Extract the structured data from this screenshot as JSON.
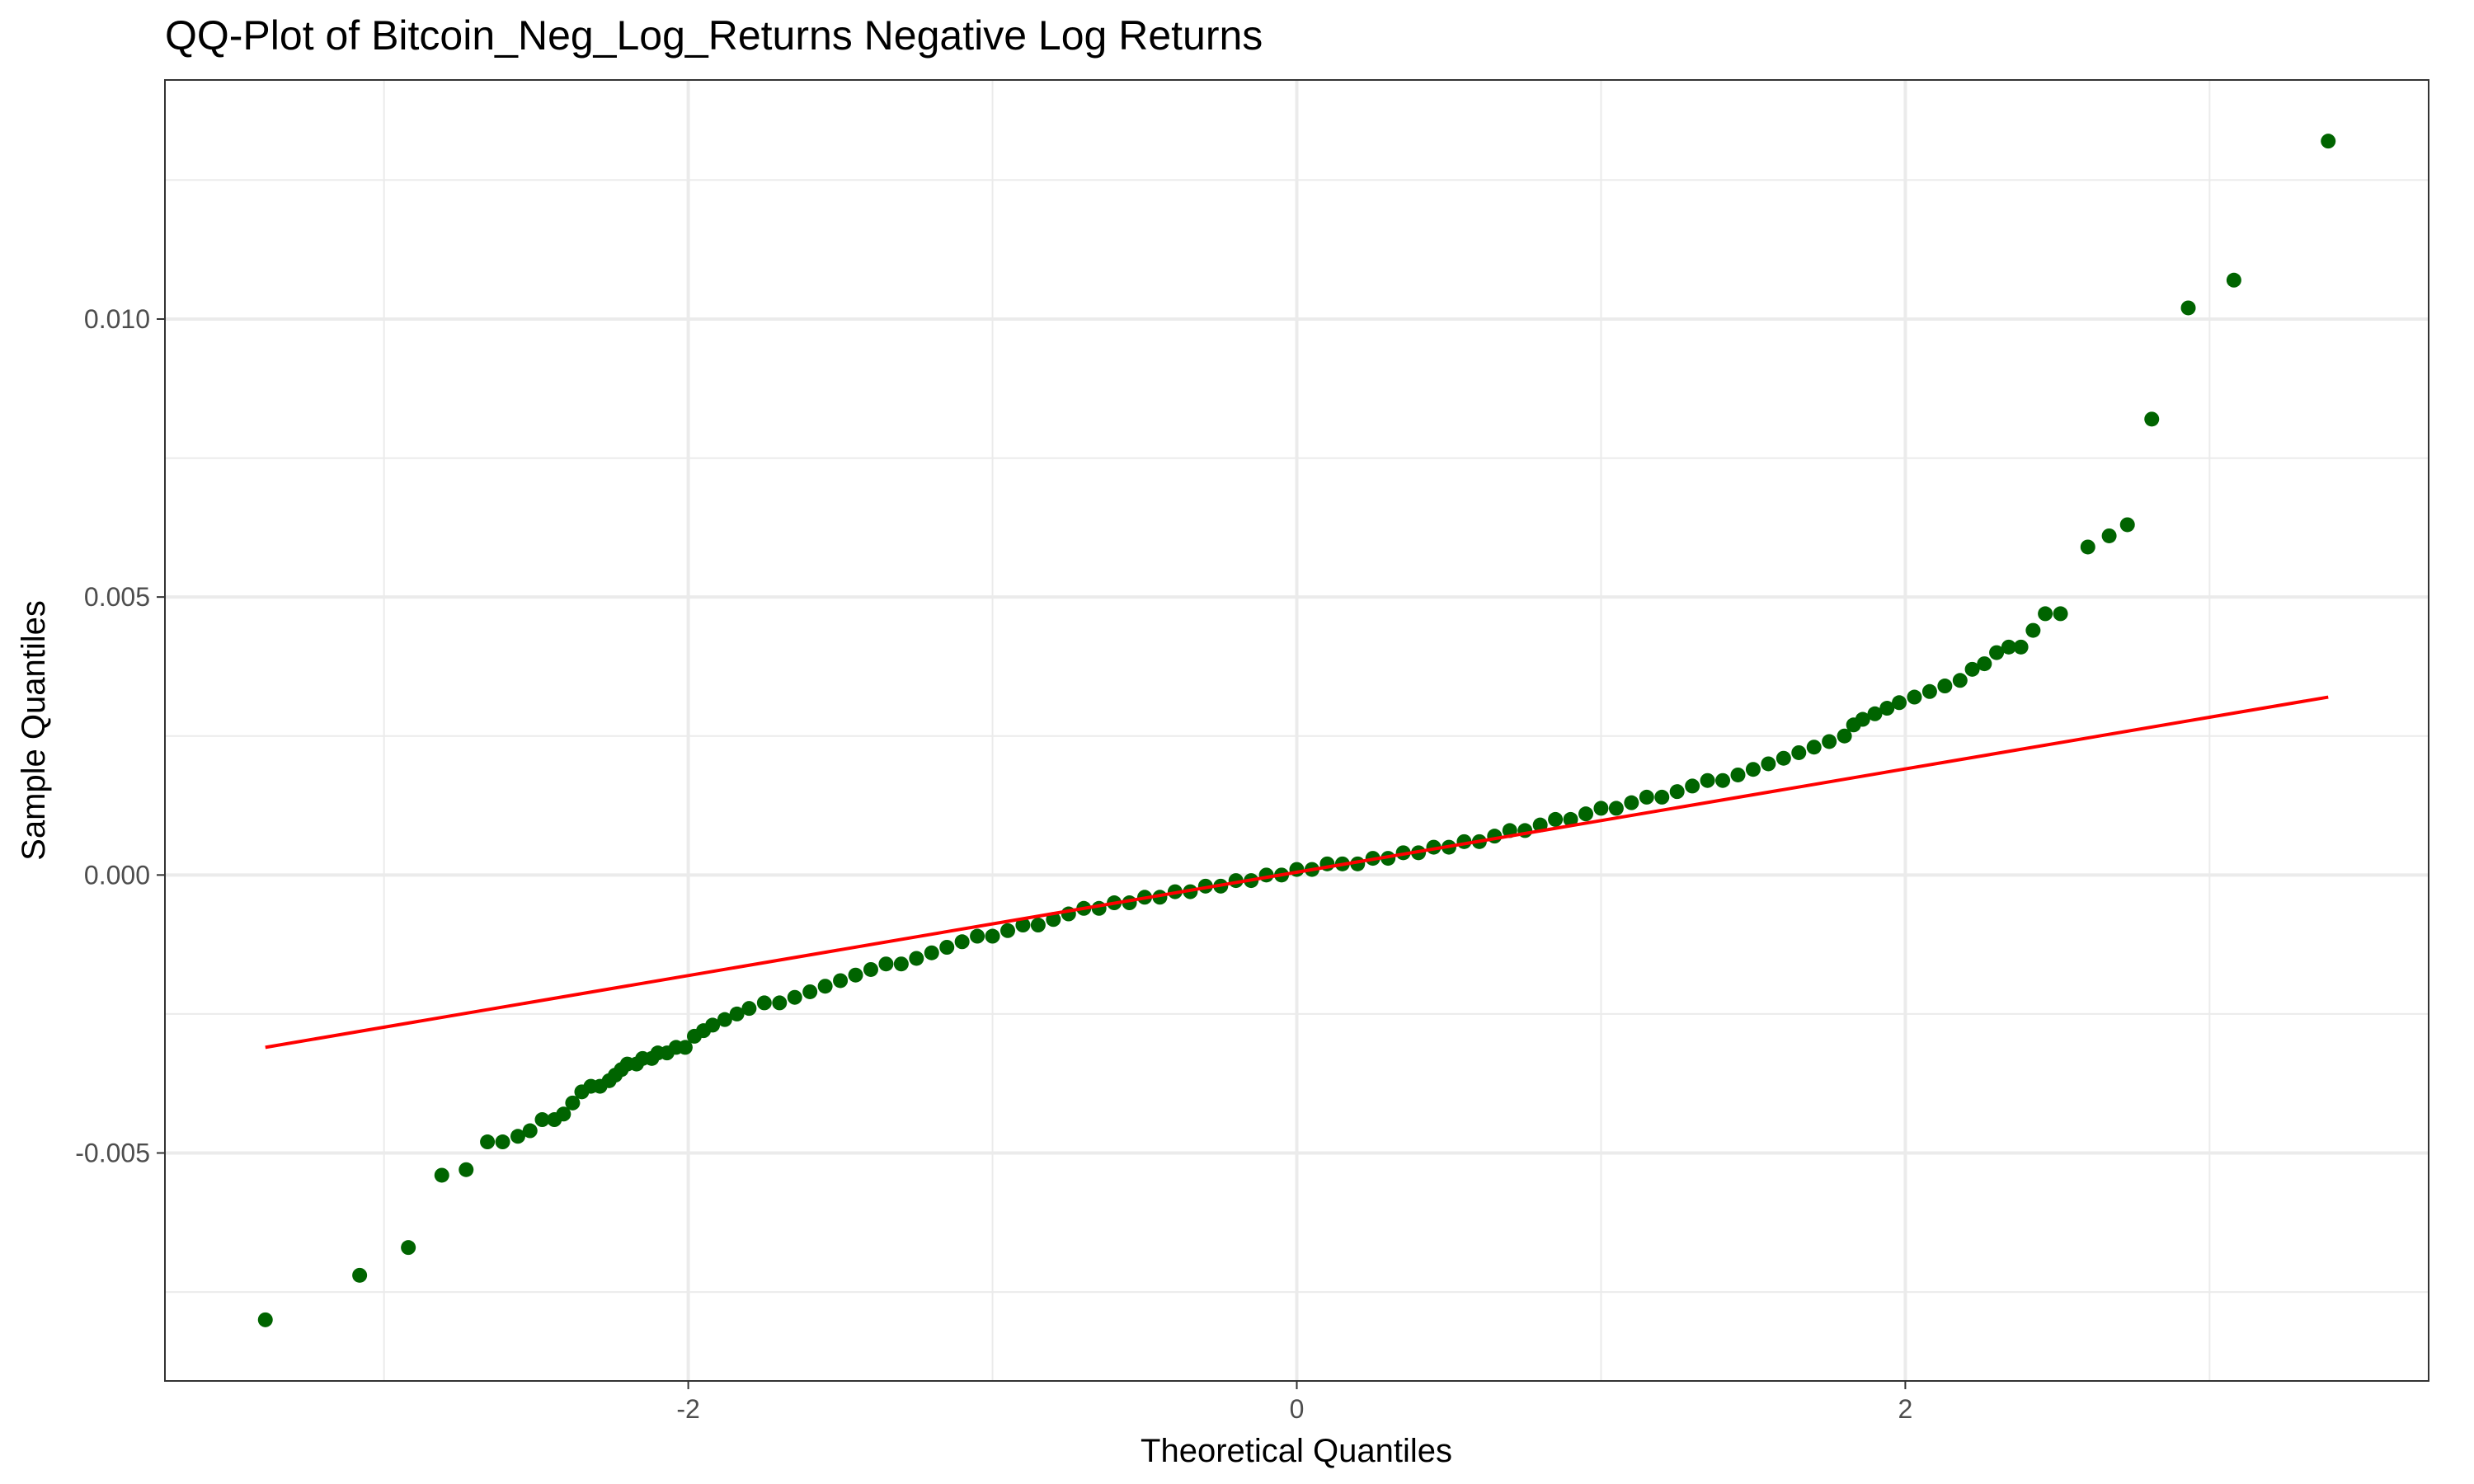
{
  "chart_data": {
    "type": "scatter",
    "title": "QQ-Plot of Bitcoin_Neg_Log_Returns Negative Log Returns",
    "xlabel": "Theoretical Quantiles",
    "ylabel": "Sample Quantiles",
    "xlim": [
      -3.72,
      3.72
    ],
    "ylim": [
      -0.0091,
      0.0143
    ],
    "x_ticks": [
      -2,
      0,
      2
    ],
    "x_tick_labels": [
      "-2",
      "0",
      "2"
    ],
    "y_ticks": [
      -0.005,
      0.0,
      0.005,
      0.01
    ],
    "y_tick_labels": [
      "-0.005",
      "0.000",
      "0.005",
      "0.010"
    ],
    "x_minor_ticks": [
      -3,
      -1,
      1,
      3
    ],
    "y_minor_ticks": [
      -0.0075,
      -0.0025,
      0.0025,
      0.0075,
      0.0125
    ],
    "grid": true,
    "legend": "none",
    "colors": {
      "points": "#006400",
      "reference_line": "#ff0000",
      "grid": "#ebebeb",
      "panel_border": "#333333"
    },
    "series": [
      {
        "kind": "points",
        "points": [
          [
            -3.39,
            -0.008
          ],
          [
            -3.08,
            -0.0072
          ],
          [
            -2.92,
            -0.0067
          ],
          [
            -2.81,
            -0.0054
          ],
          [
            -2.73,
            -0.0053
          ],
          [
            -2.66,
            -0.0048
          ],
          [
            -2.61,
            -0.0048
          ],
          [
            -2.56,
            -0.0047
          ],
          [
            -2.52,
            -0.0046
          ],
          [
            -2.48,
            -0.0044
          ],
          [
            -2.44,
            -0.0044
          ],
          [
            -2.41,
            -0.0043
          ],
          [
            -2.38,
            -0.0041
          ],
          [
            -2.35,
            -0.0039
          ],
          [
            -2.32,
            -0.0038
          ],
          [
            -2.29,
            -0.0038
          ],
          [
            -2.26,
            -0.0037
          ],
          [
            -2.24,
            -0.0036
          ],
          [
            -2.22,
            -0.0035
          ],
          [
            -2.2,
            -0.0034
          ],
          [
            -2.17,
            -0.0034
          ],
          [
            -2.15,
            -0.0033
          ],
          [
            -2.12,
            -0.0033
          ],
          [
            -2.1,
            -0.0032
          ],
          [
            -2.07,
            -0.0032
          ],
          [
            -2.04,
            -0.0031
          ],
          [
            -2.01,
            -0.0031
          ],
          [
            -1.98,
            -0.0029
          ],
          [
            -1.95,
            -0.0028
          ],
          [
            -1.92,
            -0.0027
          ],
          [
            -1.88,
            -0.0026
          ],
          [
            -1.84,
            -0.0025
          ],
          [
            -1.8,
            -0.0024
          ],
          [
            -1.75,
            -0.0023
          ],
          [
            -1.7,
            -0.0023
          ],
          [
            -1.65,
            -0.0022
          ],
          [
            -1.6,
            -0.0021
          ],
          [
            -1.55,
            -0.002
          ],
          [
            -1.5,
            -0.0019
          ],
          [
            -1.45,
            -0.0018
          ],
          [
            -1.4,
            -0.0017
          ],
          [
            -1.35,
            -0.0016
          ],
          [
            -1.3,
            -0.0016
          ],
          [
            -1.25,
            -0.0015
          ],
          [
            -1.2,
            -0.0014
          ],
          [
            -1.15,
            -0.0013
          ],
          [
            -1.1,
            -0.0012
          ],
          [
            -1.05,
            -0.0011
          ],
          [
            -1.0,
            -0.0011
          ],
          [
            -0.95,
            -0.001
          ],
          [
            -0.9,
            -0.0009
          ],
          [
            -0.85,
            -0.0009
          ],
          [
            -0.8,
            -0.0008
          ],
          [
            -0.75,
            -0.0007
          ],
          [
            -0.7,
            -0.0006
          ],
          [
            -0.65,
            -0.0006
          ],
          [
            -0.6,
            -0.0005
          ],
          [
            -0.55,
            -0.0005
          ],
          [
            -0.5,
            -0.0004
          ],
          [
            -0.45,
            -0.0004
          ],
          [
            -0.4,
            -0.0003
          ],
          [
            -0.35,
            -0.0003
          ],
          [
            -0.3,
            -0.0002
          ],
          [
            -0.25,
            -0.0002
          ],
          [
            -0.2,
            -0.0001
          ],
          [
            -0.15,
            -0.0001
          ],
          [
            -0.1,
            0.0
          ],
          [
            -0.05,
            0.0
          ],
          [
            0.0,
            0.0001
          ],
          [
            0.05,
            0.0001
          ],
          [
            0.1,
            0.0002
          ],
          [
            0.15,
            0.0002
          ],
          [
            0.2,
            0.0002
          ],
          [
            0.25,
            0.0003
          ],
          [
            0.3,
            0.0003
          ],
          [
            0.35,
            0.0004
          ],
          [
            0.4,
            0.0004
          ],
          [
            0.45,
            0.0005
          ],
          [
            0.5,
            0.0005
          ],
          [
            0.55,
            0.0006
          ],
          [
            0.6,
            0.0006
          ],
          [
            0.65,
            0.0007
          ],
          [
            0.7,
            0.0008
          ],
          [
            0.75,
            0.0008
          ],
          [
            0.8,
            0.0009
          ],
          [
            0.85,
            0.001
          ],
          [
            0.9,
            0.001
          ],
          [
            0.95,
            0.0011
          ],
          [
            1.0,
            0.0012
          ],
          [
            1.05,
            0.0012
          ],
          [
            1.1,
            0.0013
          ],
          [
            1.15,
            0.0014
          ],
          [
            1.2,
            0.0014
          ],
          [
            1.25,
            0.0015
          ],
          [
            1.3,
            0.0016
          ],
          [
            1.35,
            0.0017
          ],
          [
            1.4,
            0.0017
          ],
          [
            1.45,
            0.0018
          ],
          [
            1.5,
            0.0019
          ],
          [
            1.55,
            0.002
          ],
          [
            1.6,
            0.0021
          ],
          [
            1.65,
            0.0022
          ],
          [
            1.7,
            0.0023
          ],
          [
            1.75,
            0.0024
          ],
          [
            1.8,
            0.0025
          ],
          [
            1.83,
            0.0027
          ],
          [
            1.86,
            0.0028
          ],
          [
            1.9,
            0.0029
          ],
          [
            1.94,
            0.003
          ],
          [
            1.98,
            0.0031
          ],
          [
            2.03,
            0.0032
          ],
          [
            2.08,
            0.0033
          ],
          [
            2.13,
            0.0034
          ],
          [
            2.18,
            0.0035
          ],
          [
            2.22,
            0.0037
          ],
          [
            2.26,
            0.0038
          ],
          [
            2.3,
            0.004
          ],
          [
            2.34,
            0.0041
          ],
          [
            2.38,
            0.0041
          ],
          [
            2.42,
            0.0044
          ],
          [
            2.46,
            0.0047
          ],
          [
            2.51,
            0.0047
          ],
          [
            2.6,
            0.0059
          ],
          [
            2.67,
            0.0061
          ],
          [
            2.73,
            0.0063
          ],
          [
            2.81,
            0.0082
          ],
          [
            2.93,
            0.0102
          ],
          [
            3.08,
            0.0107
          ],
          [
            3.39,
            0.0132
          ]
        ]
      },
      {
        "kind": "reference-line",
        "points": [
          [
            -3.39,
            -0.0031
          ],
          [
            3.39,
            0.0032
          ]
        ]
      }
    ]
  }
}
